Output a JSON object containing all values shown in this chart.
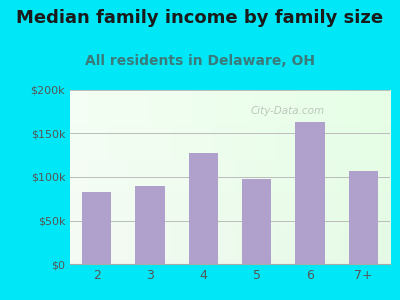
{
  "title": "Median family income by family size",
  "subtitle": "All residents in Delaware, OH",
  "categories": [
    "2",
    "3",
    "4",
    "5",
    "6",
    "7+"
  ],
  "values": [
    83000,
    90000,
    128000,
    98000,
    163000,
    107000
  ],
  "bar_color": "#b0a0cc",
  "background_outer": "#00e8f8",
  "ylim": [
    0,
    200000
  ],
  "yticks": [
    0,
    50000,
    100000,
    150000,
    200000
  ],
  "ytick_labels": [
    "$0",
    "$50k",
    "$100k",
    "$150k",
    "$200k"
  ],
  "title_fontsize": 13,
  "subtitle_fontsize": 10,
  "title_color": "#1a1a1a",
  "subtitle_color": "#3a7a7a",
  "tick_color": "#555555",
  "grid_color": "#bbbbbb",
  "watermark_text": "City-Data.com"
}
